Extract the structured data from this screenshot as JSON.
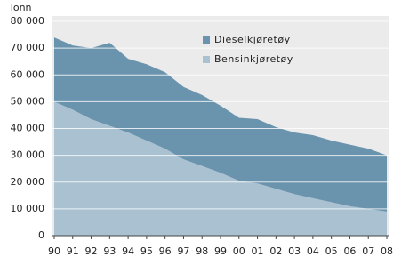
{
  "chart_data": {
    "type": "stacked_area",
    "ylabel": "Tonn",
    "categories": [
      "90",
      "91",
      "92",
      "93",
      "94",
      "95",
      "96",
      "97",
      "98",
      "99",
      "00",
      "01",
      "02",
      "03",
      "04",
      "05",
      "06",
      "07",
      "08"
    ],
    "series": [
      {
        "name": "Bensinkjøretøy",
        "color": "#a9c1d1",
        "values": [
          50000,
          47000,
          43500,
          41000,
          38500,
          35500,
          32500,
          28500,
          26000,
          23500,
          20500,
          19500,
          17500,
          15500,
          14000,
          12500,
          11000,
          10000,
          9000
        ]
      },
      {
        "name": "Dieselkjøretøy",
        "color": "#6a93ad",
        "values": [
          24000,
          24000,
          26500,
          31000,
          27500,
          28500,
          28500,
          27000,
          26500,
          25000,
          23500,
          24000,
          23000,
          23000,
          23500,
          23000,
          23000,
          22500,
          21000
        ]
      }
    ],
    "ylim": [
      0,
      80000
    ],
    "yticks": [
      0,
      {
        "value": 10000,
        "label": "10 000"
      },
      {
        "value": 20000,
        "label": "20 000"
      },
      {
        "value": 30000,
        "label": "30 000"
      },
      {
        "value": 40000,
        "label": "40 000"
      },
      {
        "value": 50000,
        "label": "50 000"
      },
      {
        "value": 60000,
        "label": "60 000"
      },
      {
        "value": 70000,
        "label": "70 000"
      },
      {
        "value": 80000,
        "label": "80 000"
      }
    ],
    "grid": true,
    "legend": "top-right"
  }
}
